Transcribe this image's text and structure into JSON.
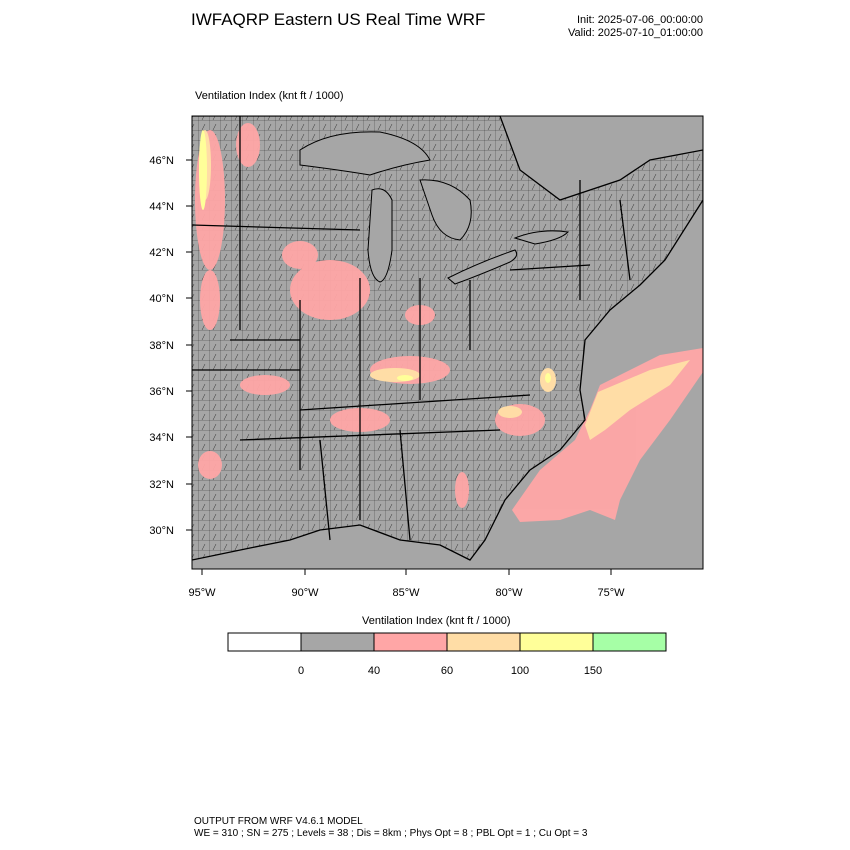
{
  "header": {
    "title": "IWFAQRP Eastern US Real Time WRF",
    "init": "Init: 2025-07-06_00:00:00",
    "valid": "Valid: 2025-07-10_01:00:00"
  },
  "map": {
    "field_title": "Ventilation Index   (knt ft / 1000)",
    "lat_labels": [
      "46°N",
      "44°N",
      "42°N",
      "40°N",
      "38°N",
      "36°N",
      "34°N",
      "32°N",
      "30°N"
    ],
    "lon_labels": [
      "95°W",
      "90°W",
      "85°W",
      "80°W",
      "75°W"
    ],
    "colors": {
      "background": "#a6a6a6",
      "low": "#ffa6a6",
      "medium": "#ffdda6",
      "high": "#ffff99",
      "border": "#000000"
    }
  },
  "colorbar": {
    "title": "Ventilation Index  (knt ft / 1000)",
    "colors": [
      "#ffffff",
      "#a6a6a6",
      "#ffa6a6",
      "#ffdda6",
      "#ffff99",
      "#a6ffa6"
    ],
    "labels": [
      "0",
      "40",
      "60",
      "100",
      "150"
    ]
  },
  "footer": {
    "line1": "OUTPUT FROM WRF V4.6.1 MODEL",
    "line2": "WE = 310 ; SN = 275 ; Levels = 38 ; Dis = 8km ; Phys Opt = 8 ; PBL Opt = 1 ; Cu Opt = 3"
  }
}
